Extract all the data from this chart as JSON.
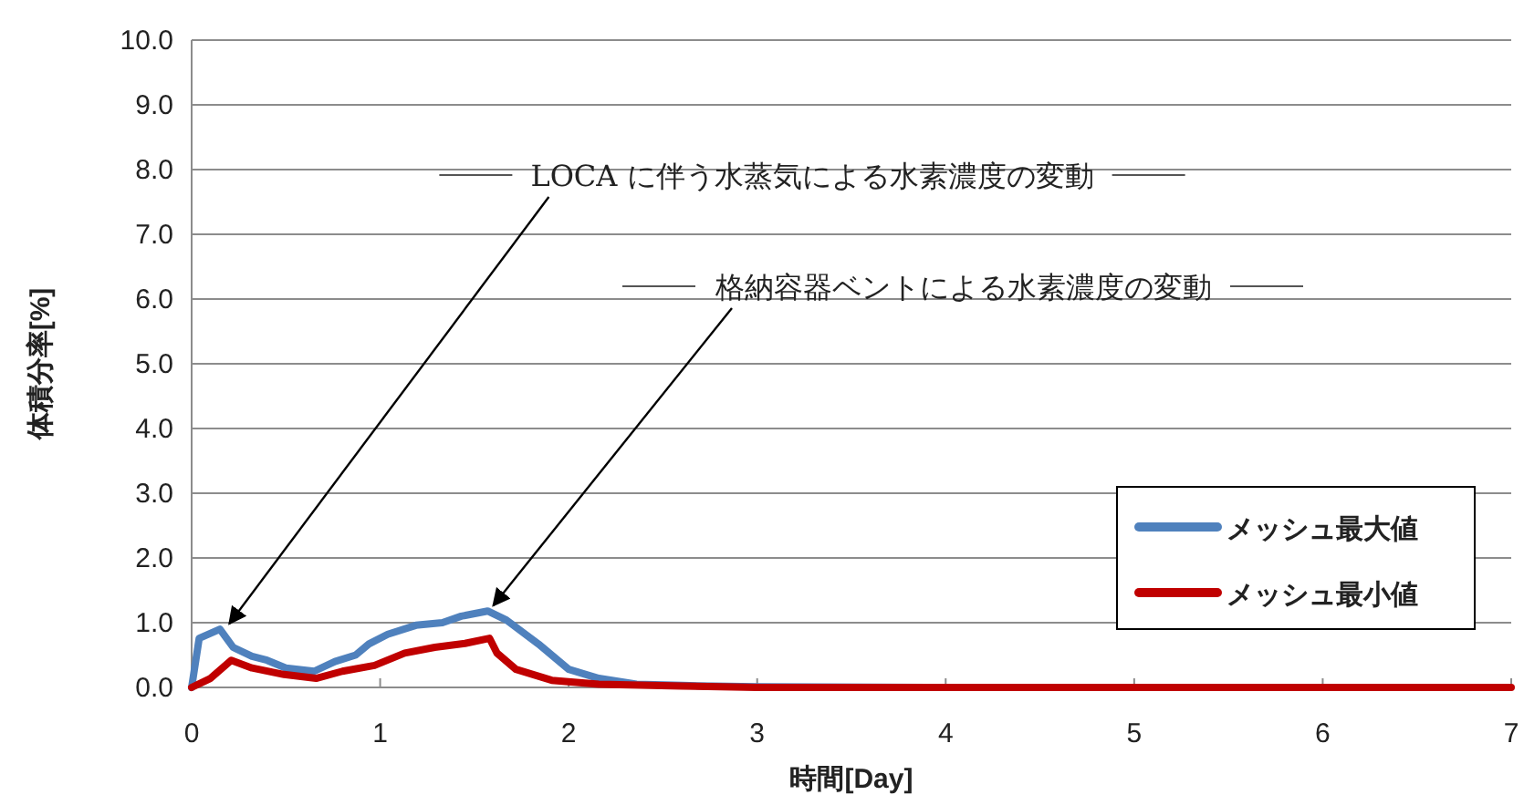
{
  "chart_data": {
    "type": "line",
    "xlabel": "時間[Day]",
    "ylabel": "体積分率[%]",
    "xlim": [
      0,
      7
    ],
    "xticks": [
      0,
      1,
      2,
      3,
      4,
      5,
      6,
      7
    ],
    "ylim": [
      0,
      10
    ],
    "yticks": [
      {
        "value": 0,
        "label": "0.0"
      },
      {
        "value": 1,
        "label": "1.0"
      },
      {
        "value": 2,
        "label": "2.0"
      },
      {
        "value": 3,
        "label": "3.0"
      },
      {
        "value": 4,
        "label": "4.0"
      },
      {
        "value": 5,
        "label": "5.0"
      },
      {
        "value": 6,
        "label": "6.0"
      },
      {
        "value": 7,
        "label": "7.0"
      },
      {
        "value": 8,
        "label": "8.0"
      },
      {
        "value": 9,
        "label": "9.0"
      },
      {
        "value": 10,
        "label": "10.0"
      }
    ],
    "grid": "y",
    "legend": "bottom right",
    "marker": "none",
    "line_style": "solid",
    "series": [
      {
        "name": "メッシュ最大値",
        "color": "#4f81bd",
        "x": [
          0,
          0.04,
          0.15,
          0.22,
          0.32,
          0.4,
          0.5,
          0.65,
          0.76,
          0.87,
          0.94,
          1.04,
          1.19,
          1.33,
          1.43,
          1.57,
          1.67,
          1.84,
          2.0,
          2.16,
          2.36,
          2.6,
          3.0,
          4.0
        ],
        "values": [
          0,
          0.76,
          0.9,
          0.62,
          0.48,
          0.42,
          0.3,
          0.25,
          0.4,
          0.5,
          0.67,
          0.82,
          0.96,
          1.0,
          1.1,
          1.18,
          1.04,
          0.67,
          0.28,
          0.14,
          0.05,
          0.03,
          0.01,
          0
        ]
      },
      {
        "name": "メッシュ最小値",
        "color": "#c00000",
        "x": [
          0,
          0.1,
          0.21,
          0.32,
          0.49,
          0.66,
          0.8,
          0.97,
          1.13,
          1.29,
          1.45,
          1.58,
          1.62,
          1.72,
          1.91,
          2.16,
          2.6,
          3.0,
          4.0,
          5.0,
          6.0,
          7.0
        ],
        "values": [
          0,
          0.14,
          0.42,
          0.3,
          0.2,
          0.14,
          0.25,
          0.34,
          0.53,
          0.62,
          0.68,
          0.76,
          0.53,
          0.28,
          0.11,
          0.05,
          0.02,
          0,
          0,
          0,
          0,
          0
        ]
      }
    ],
    "annotations": [
      {
        "text": "LOCA に伴う水蒸気による水素濃度の変動",
        "x": 0.2,
        "y": 0.9
      },
      {
        "text": "格納容器ベントによる水素濃度の変動",
        "x": 1.6,
        "y": 1.18
      }
    ]
  }
}
